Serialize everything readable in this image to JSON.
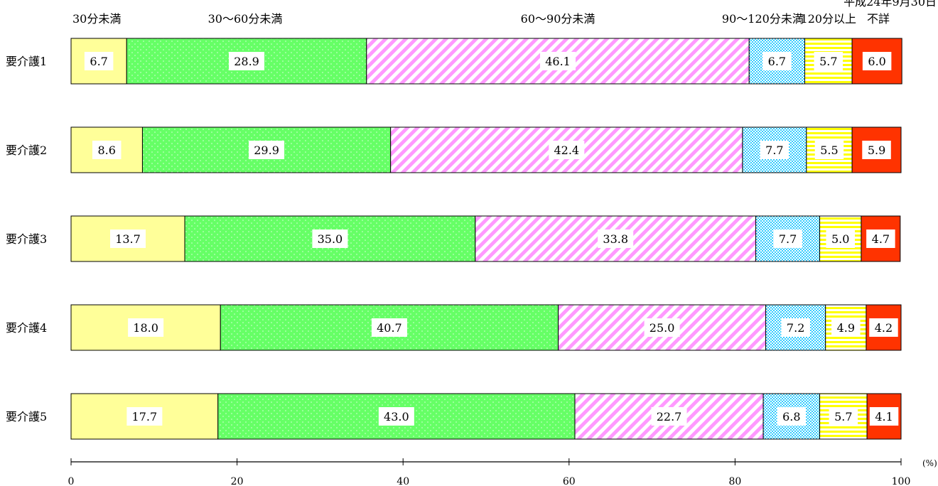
{
  "note": "平成24年9月30日",
  "chart_data": {
    "type": "bar",
    "orientation": "horizontal",
    "stacked": true,
    "categories": [
      "要介護1",
      "要介護2",
      "要介護3",
      "要介護4",
      "要介護5"
    ],
    "series": [
      {
        "name": "30分未満",
        "color": "#ffff99",
        "pattern": "solid",
        "values": [
          6.7,
          8.6,
          13.7,
          18.0,
          17.7
        ]
      },
      {
        "name": "30〜60分未満",
        "color": "#66ff66",
        "pattern": "dots",
        "values": [
          28.9,
          29.9,
          35.0,
          40.7,
          43.0
        ]
      },
      {
        "name": "60〜90分未満",
        "color": "#ff99ff",
        "pattern": "diagonal-stripes",
        "values": [
          46.1,
          42.4,
          33.8,
          25.0,
          22.7
        ]
      },
      {
        "name": "90〜120分未満",
        "color": "#33ccff",
        "pattern": "checker",
        "values": [
          6.7,
          7.7,
          7.7,
          7.2,
          6.8
        ]
      },
      {
        "name": "120分以上",
        "color": "#ffff00",
        "pattern": "horizontal-stripes",
        "values": [
          5.7,
          5.5,
          5.0,
          4.9,
          5.7
        ]
      },
      {
        "name": "不詳",
        "color": "#ff3300",
        "pattern": "solid",
        "values": [
          6.0,
          5.9,
          4.7,
          4.2,
          4.1
        ]
      }
    ],
    "xlim": [
      0,
      100
    ],
    "xticks": [
      "0",
      "20",
      "40",
      "60",
      "80",
      "100"
    ],
    "xunit": "(%)",
    "legend": "top, labels above first bar",
    "grid": false
  }
}
